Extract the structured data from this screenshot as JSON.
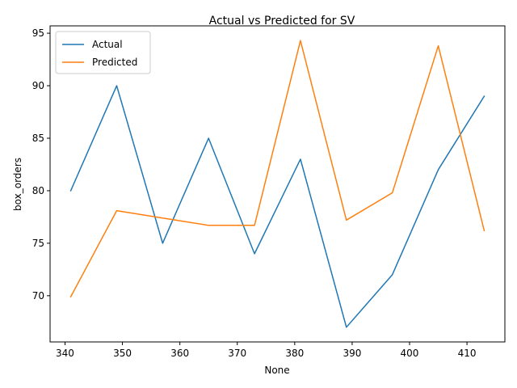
{
  "chart_data": {
    "type": "line",
    "title": "Actual vs Predicted for SV",
    "xlabel": "None",
    "ylabel": "box_orders",
    "xlim": [
      337.4,
      416.6
    ],
    "ylim": [
      65.6,
      95.7
    ],
    "x_ticks": [
      340,
      350,
      360,
      370,
      380,
      390,
      400,
      410
    ],
    "y_ticks": [
      70,
      75,
      80,
      85,
      90,
      95
    ],
    "x": [
      341,
      349,
      357,
      365,
      373,
      381,
      389,
      397,
      405,
      413
    ],
    "series": [
      {
        "name": "Actual",
        "color": "#1f77b4",
        "values": [
          80,
          90,
          75,
          85,
          74,
          83,
          67,
          72,
          82,
          89
        ]
      },
      {
        "name": "Predicted",
        "color": "#ff7f0e",
        "values": [
          69.9,
          78.1,
          77.4,
          76.7,
          76.7,
          94.3,
          77.2,
          79.8,
          93.8,
          76.2
        ]
      }
    ],
    "legend_position": "top-left",
    "grid": false
  }
}
